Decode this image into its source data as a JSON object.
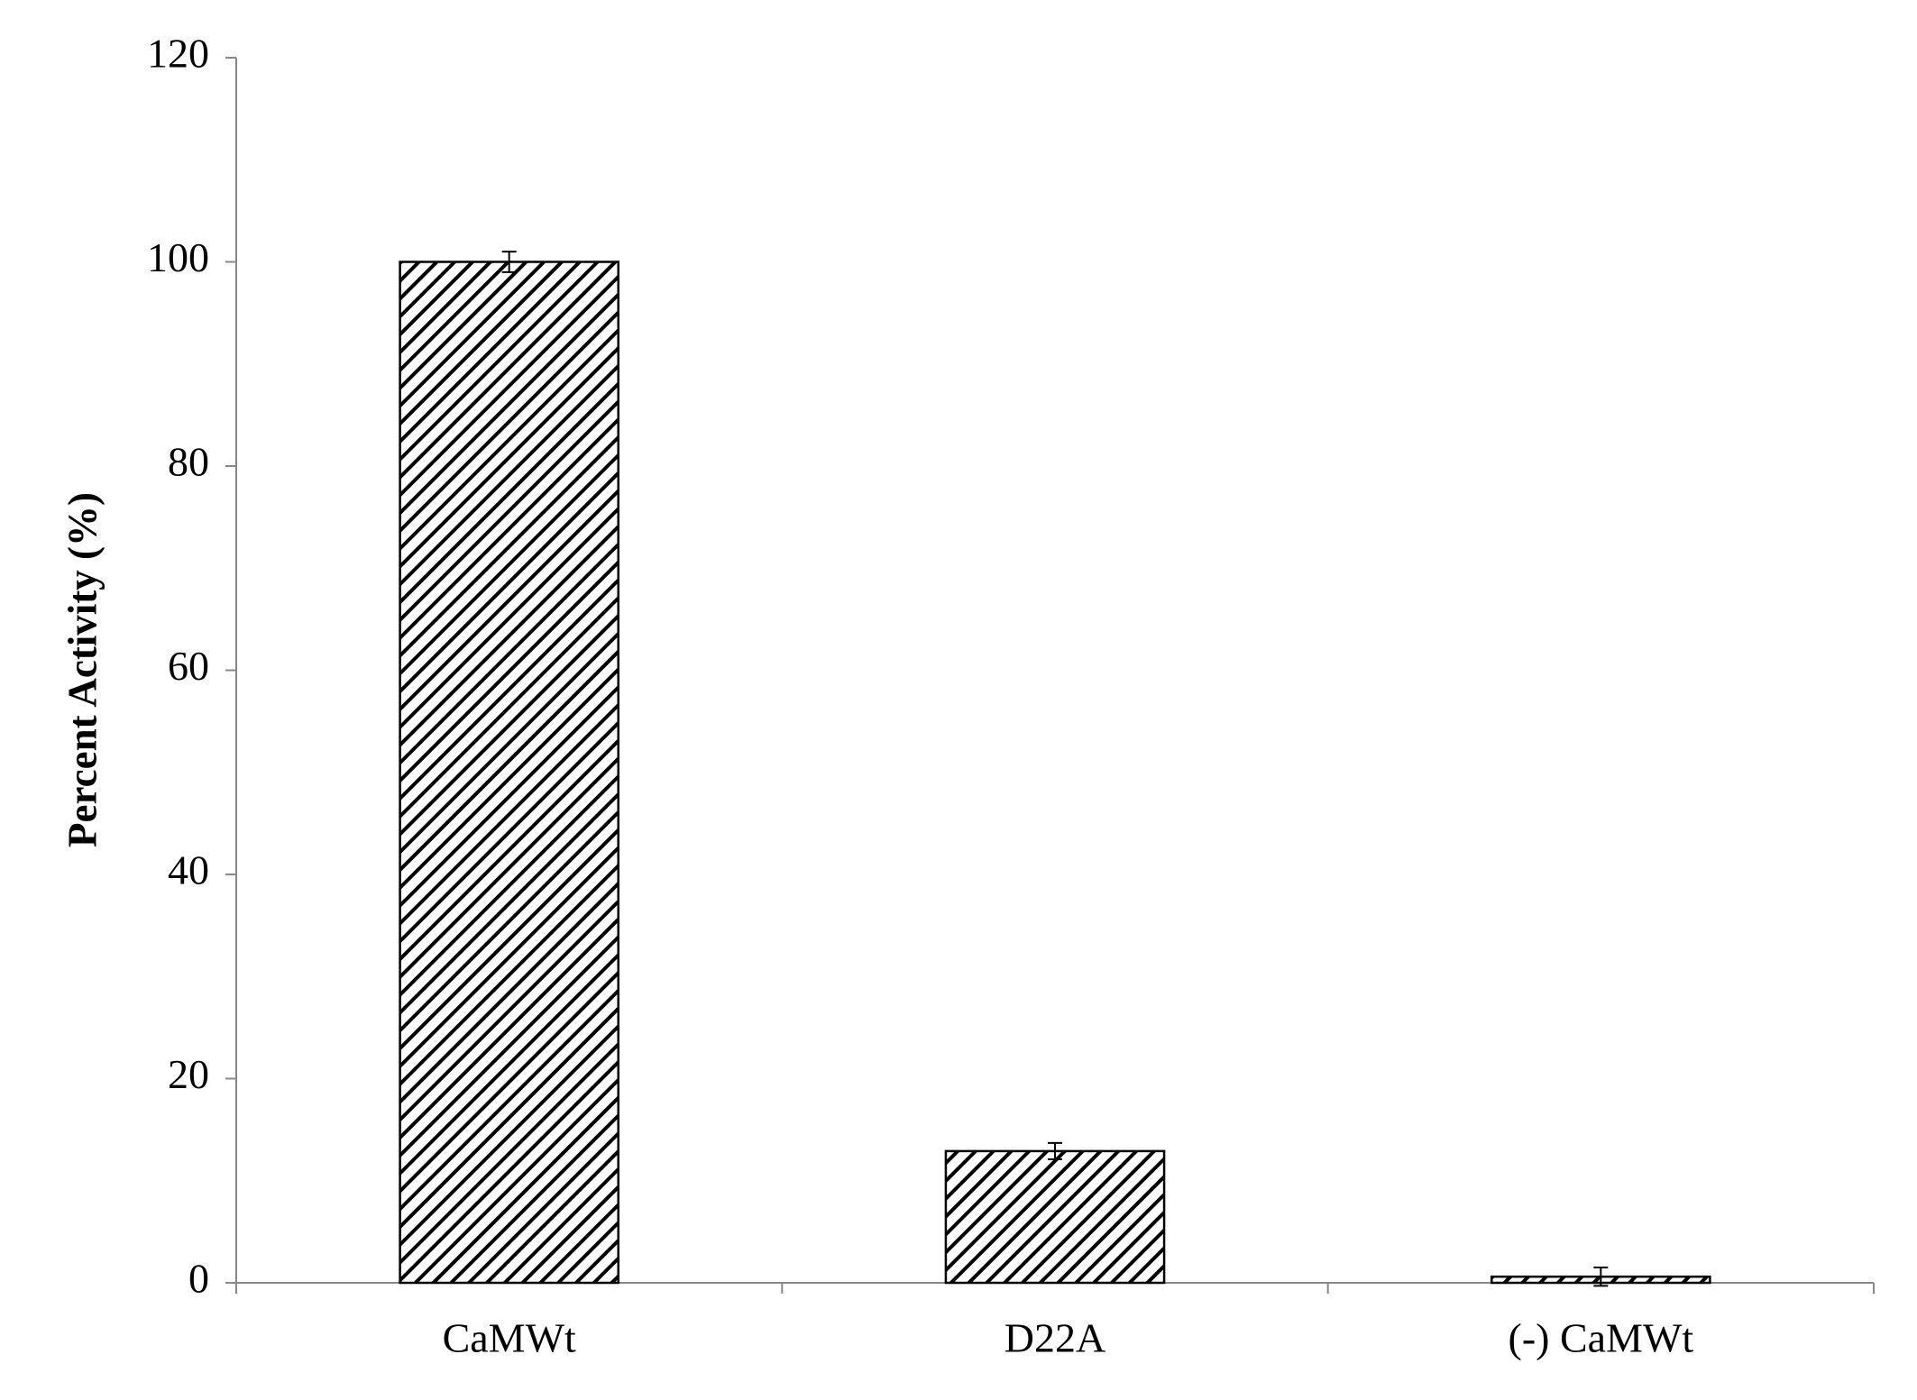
{
  "chart_data": {
    "type": "bar",
    "y_label": "Percent Activity (%)",
    "categories": [
      "CaMWt",
      "D22A",
      "(-) CaMWt"
    ],
    "values": [
      100,
      12.9,
      0.6
    ],
    "errors": [
      1.0,
      0.8,
      0.9
    ],
    "color": "#000000",
    "pattern": "hatch",
    "ylim": [
      0,
      120
    ],
    "yticks": [
      0,
      20,
      40,
      60,
      80,
      100,
      120
    ],
    "grid": false
  }
}
